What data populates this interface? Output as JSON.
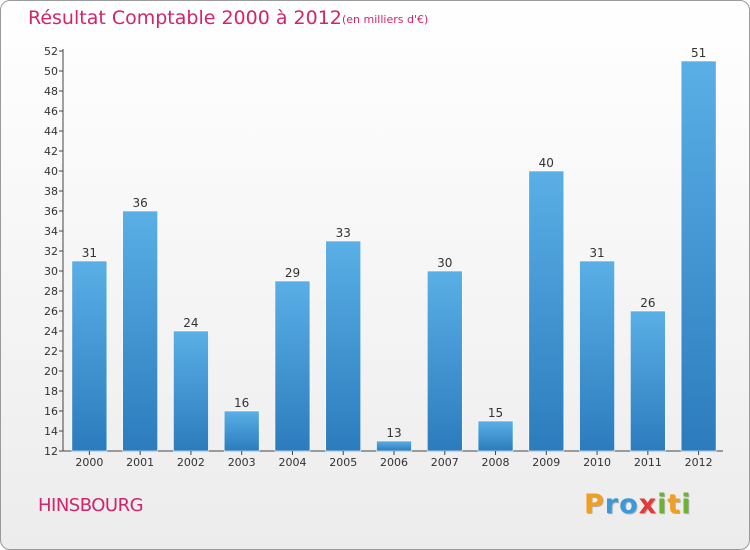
{
  "chart_data": {
    "type": "bar",
    "title": "Résultat Comptable 2000 à 2012",
    "subtitle": "(en milliers d'€)",
    "categories": [
      "2000",
      "2001",
      "2002",
      "2003",
      "2004",
      "2005",
      "2006",
      "2007",
      "2008",
      "2009",
      "2010",
      "2011",
      "2012"
    ],
    "values": [
      31,
      36,
      24,
      16,
      29,
      33,
      13,
      30,
      15,
      40,
      31,
      26,
      51
    ],
    "xlabel": "",
    "ylabel": "",
    "ylim": [
      12,
      52
    ],
    "yticks": [
      12,
      14,
      16,
      18,
      20,
      22,
      24,
      26,
      28,
      30,
      32,
      34,
      36,
      38,
      40,
      42,
      44,
      46,
      48,
      50,
      52
    ],
    "grid": false,
    "bar_color_top": "#5aafe6",
    "bar_color_bottom": "#2c7cbd"
  },
  "commune": "HINSBOURG",
  "logo": {
    "letters": [
      "P",
      "r",
      "o",
      "x",
      "i",
      "t",
      "i"
    ],
    "colors": [
      "#f0a020",
      "#3a9ad9",
      "#3a9ad9",
      "#e03a3a",
      "#6bb52e",
      "#f0a020",
      "#6bb52e"
    ]
  },
  "colors": {
    "accent": "#d2246c",
    "axis": "#444444"
  }
}
